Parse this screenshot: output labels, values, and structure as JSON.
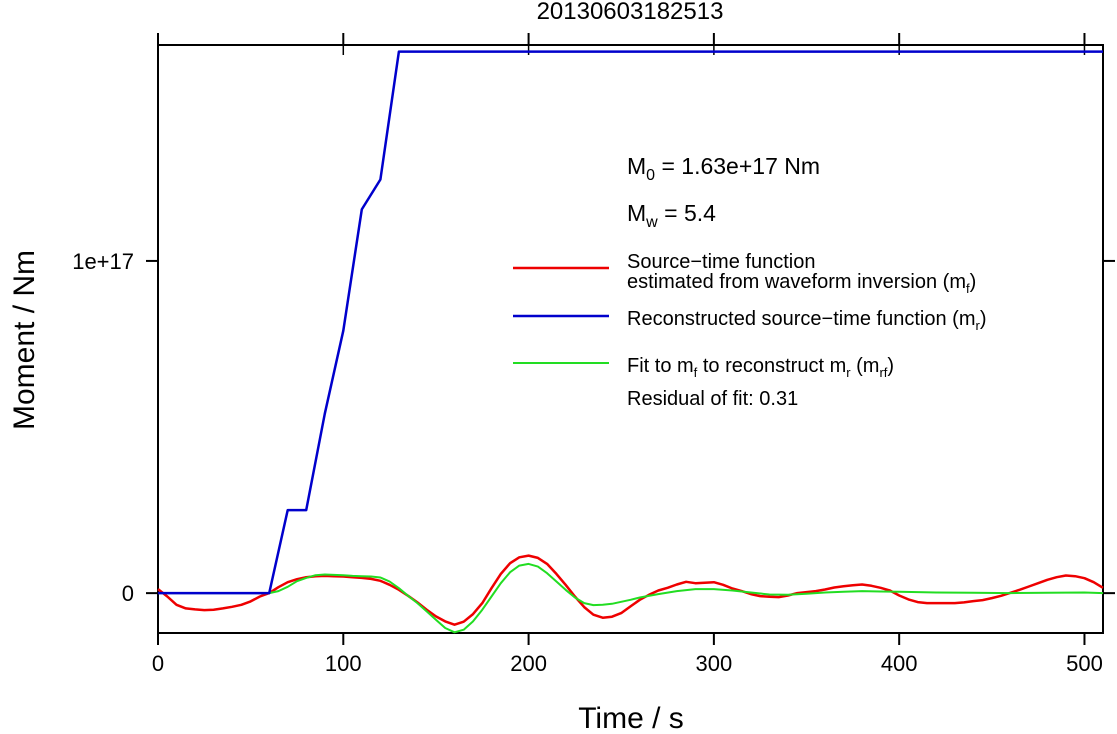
{
  "chart_data": {
    "type": "line",
    "title": "20130603182513",
    "xlabel": "Time / s",
    "ylabel": "Moment / Nm",
    "xlim": [
      0,
      510
    ],
    "ylim": [
      -1.2e+16,
      1.65e+17
    ],
    "x_ticks": [
      {
        "value": 0,
        "label": "0"
      },
      {
        "value": 100,
        "label": "100"
      },
      {
        "value": 200,
        "label": "200"
      },
      {
        "value": 300,
        "label": "300"
      },
      {
        "value": 400,
        "label": "400"
      },
      {
        "value": 500,
        "label": "500"
      }
    ],
    "y_ticks": [
      {
        "value": 0,
        "label": "0"
      },
      {
        "value": 1e+17,
        "label": "1e+17"
      }
    ],
    "grid": false,
    "legend_position": "center-right",
    "annotations": {
      "m0": {
        "sym": "M",
        "sub": "0",
        "text": " = 1.63e+17 Nm"
      },
      "mw": {
        "sym": "M",
        "sub": "w",
        "text": " = 5.4"
      },
      "residual": "Residual of fit: 0.31"
    },
    "series": [
      {
        "id": "red",
        "name_line1": "Source−time function",
        "name_line2": "estimated from waveform inversion (m",
        "name_sub": "f",
        "name_tail": ")",
        "color": "#ee0000",
        "x": [
          0,
          5,
          10,
          15,
          20,
          25,
          30,
          35,
          40,
          45,
          50,
          55,
          60,
          65,
          70,
          75,
          80,
          85,
          90,
          95,
          100,
          105,
          110,
          115,
          120,
          125,
          130,
          135,
          140,
          145,
          150,
          155,
          160,
          165,
          170,
          175,
          180,
          185,
          190,
          195,
          200,
          205,
          210,
          215,
          220,
          225,
          230,
          235,
          240,
          245,
          250,
          255,
          260,
          265,
          270,
          275,
          280,
          285,
          290,
          295,
          300,
          305,
          310,
          315,
          320,
          325,
          330,
          335,
          340,
          345,
          350,
          355,
          360,
          365,
          370,
          375,
          380,
          385,
          390,
          395,
          400,
          405,
          410,
          415,
          420,
          425,
          430,
          435,
          440,
          445,
          450,
          455,
          460,
          465,
          470,
          475,
          480,
          485,
          490,
          495,
          500,
          505,
          510
        ],
        "y": [
          1200000000000000.0,
          -1000000000000000.0,
          -3500000000000000.0,
          -4600000000000000.0,
          -4900000000000000.0,
          -5100000000000000.0,
          -5000000000000000.0,
          -4600000000000000.0,
          -4100000000000000.0,
          -3500000000000000.0,
          -2500000000000000.0,
          -1000000000000000.0,
          0,
          1800000000000000.0,
          3300000000000000.0,
          4200000000000000.0,
          4800000000000000.0,
          5100000000000000.0,
          5200000000000000.0,
          5100000000000000.0,
          5000000000000000.0,
          4800000000000000.0,
          4600000000000000.0,
          4300000000000000.0,
          3700000000000000.0,
          2500000000000000.0,
          1000000000000000.0,
          -800000000000000.0,
          -2800000000000000.0,
          -5000000000000000.0,
          -7000000000000000.0,
          -8500000000000000.0,
          -9500000000000000.0,
          -8600000000000000.0,
          -6300000000000000.0,
          -3000000000000000.0,
          1500000000000000.0,
          5800000000000000.0,
          9000000000000000.0,
          1.08e+16,
          1.13e+16,
          1.06e+16,
          8800000000000000.0,
          5800000000000000.0,
          2500000000000000.0,
          -1000000000000000.0,
          -4200000000000000.0,
          -6500000000000000.0,
          -7400000000000000.0,
          -7100000000000000.0,
          -6000000000000000.0,
          -4000000000000000.0,
          -2000000000000000.0,
          -500000000000000.0,
          800000000000000.0,
          1600000000000000.0,
          2600000000000000.0,
          3400000000000000.0,
          3000000000000000.0,
          3100000000000000.0,
          3300000000000000.0,
          2500000000000000.0,
          1400000000000000.0,
          600000000000000.0,
          -300000000000000.0,
          -900000000000000.0,
          -1100000000000000.0,
          -1200000000000000.0,
          -700000000000000.0,
          0,
          300000000000000.0,
          600000000000000.0,
          1100000000000000.0,
          1700000000000000.0,
          2100000000000000.0,
          2400000000000000.0,
          2600000000000000.0,
          2200000000000000.0,
          1600000000000000.0,
          800000000000000.0,
          -700000000000000.0,
          -1900000000000000.0,
          -2700000000000000.0,
          -3000000000000000.0,
          -3000000000000000.0,
          -3000000000000000.0,
          -3000000000000000.0,
          -2800000000000000.0,
          -2400000000000000.0,
          -2100000000000000.0,
          -1500000000000000.0,
          -800000000000000.0,
          100000000000000.0,
          1000000000000000.0,
          2000000000000000.0,
          3000000000000000.0,
          4000000000000000.0,
          4800000000000000.0,
          5300000000000000.0,
          5100000000000000.0,
          4500000000000000.0,
          3300000000000000.0,
          1600000000000000.0
        ]
      },
      {
        "id": "blue",
        "name_line1": "Reconstructed source−time function (m",
        "name_sub": "r",
        "name_tail": ")",
        "color": "#0000cc",
        "x": [
          0,
          60,
          70,
          80,
          90,
          100,
          110,
          120,
          130,
          510
        ],
        "y": [
          0,
          0,
          2.5e+16,
          2.5e+16,
          5.4e+16,
          7.9e+16,
          1.155e+17,
          1.245e+17,
          1.63e+17,
          1.63e+17
        ]
      },
      {
        "id": "green",
        "name_line1": "Fit to m",
        "name_sub1": "f",
        "name_mid": " to reconstruct m",
        "name_sub2": "r",
        "name_mid2": " (m",
        "name_sub3": "rf",
        "name_tail": ")",
        "color": "#22dd22",
        "x": [
          0,
          60,
          65,
          70,
          75,
          80,
          85,
          90,
          95,
          100,
          105,
          110,
          115,
          120,
          125,
          130,
          135,
          140,
          145,
          150,
          155,
          160,
          165,
          170,
          175,
          180,
          185,
          190,
          195,
          200,
          205,
          210,
          215,
          220,
          225,
          230,
          235,
          240,
          245,
          250,
          255,
          260,
          270,
          280,
          290,
          300,
          310,
          320,
          330,
          340,
          350,
          360,
          370,
          380,
          390,
          400,
          420,
          440,
          460,
          480,
          500,
          510
        ],
        "y": [
          0,
          0,
          600000000000000.0,
          1900000000000000.0,
          3600000000000000.0,
          4600000000000000.0,
          5400000000000000.0,
          5600000000000000.0,
          5500000000000000.0,
          5400000000000000.0,
          5200000000000000.0,
          5100000000000000.0,
          5000000000000000.0,
          4700000000000000.0,
          3500000000000000.0,
          1500000000000000.0,
          -800000000000000.0,
          -3000000000000000.0,
          -5500000000000000.0,
          -8000000000000000.0,
          -1.05e+16,
          -1.18e+16,
          -1.1e+16,
          -8500000000000000.0,
          -5000000000000000.0,
          -1000000000000000.0,
          3000000000000000.0,
          6300000000000000.0,
          8300000000000000.0,
          8800000000000000.0,
          8000000000000000.0,
          6000000000000000.0,
          3500000000000000.0,
          1000000000000000.0,
          -1300000000000000.0,
          -3000000000000000.0,
          -3600000000000000.0,
          -3500000000000000.0,
          -3200000000000000.0,
          -2600000000000000.0,
          -2000000000000000.0,
          -1300000000000000.0,
          -300000000000000.0,
          600000000000000.0,
          1200000000000000.0,
          1200000000000000.0,
          800000000000000.0,
          200000000000000.0,
          -400000000000000.0,
          -500000000000000.0,
          -200000000000000.0,
          200000000000000.0,
          400000000000000.0,
          600000000000000.0,
          500000000000000.0,
          400000000000000.0,
          200000000000000.0,
          100000000000000.0,
          0,
          100000000000000.0,
          200000000000000.0,
          0
        ]
      }
    ]
  }
}
